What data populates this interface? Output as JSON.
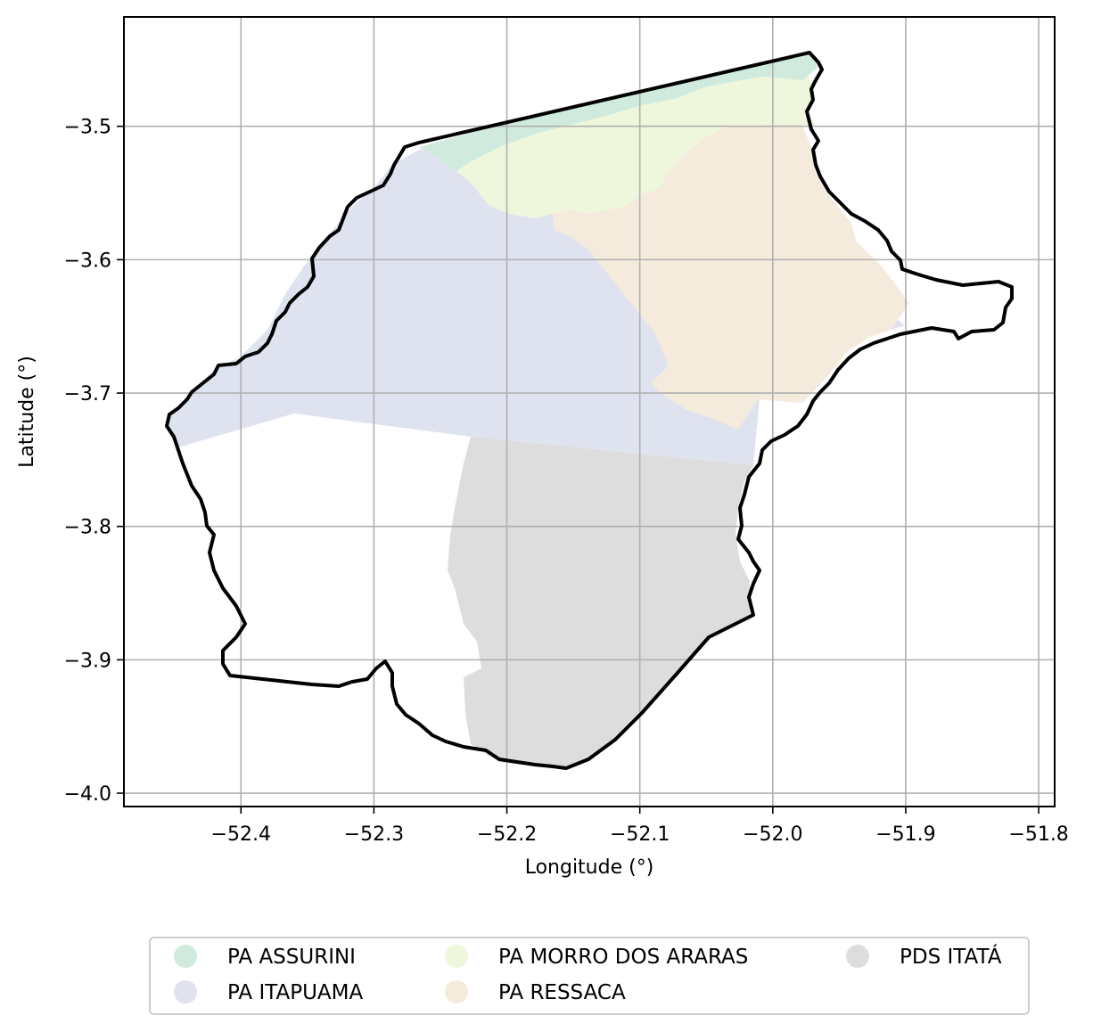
{
  "map": {
    "xlabel": "Longitude (°)",
    "ylabel": "Latitude (°)",
    "xlim": [
      -52.488,
      -51.788
    ],
    "ylim": [
      -4.01,
      -3.418
    ],
    "grid": true,
    "legend_placement": "bottom-center, below plot, 3 columns"
  },
  "axes": {
    "x_ticks": [
      {
        "value": -52.4,
        "label": "−52.4"
      },
      {
        "value": -52.3,
        "label": "−52.3"
      },
      {
        "value": -52.2,
        "label": "−52.2"
      },
      {
        "value": -52.1,
        "label": "−52.1"
      },
      {
        "value": -52.0,
        "label": "−52.0"
      },
      {
        "value": -51.9,
        "label": "−51.9"
      },
      {
        "value": -51.8,
        "label": "−51.8"
      }
    ],
    "y_ticks": [
      {
        "value": -3.5,
        "label": "−3.5"
      },
      {
        "value": -3.6,
        "label": "−3.6"
      },
      {
        "value": -3.7,
        "label": "−3.7"
      },
      {
        "value": -3.8,
        "label": "−3.8"
      },
      {
        "value": -3.9,
        "label": "−3.9"
      },
      {
        "value": -4.0,
        "label": "−4.0"
      }
    ]
  },
  "regions": [
    {
      "name": "PA ASSURINI",
      "color": "#d0ebde"
    },
    {
      "name": "PA ITAPUAMA",
      "color": "#dfe3f0"
    },
    {
      "name": "PA MORRO DOS ARARAS",
      "color": "#eef6dc"
    },
    {
      "name": "PA RESSACA",
      "color": "#f5ebdd"
    },
    {
      "name": "PDS ITATÁ",
      "color": "#dddddd"
    }
  ],
  "boundary": {
    "color": "#000000"
  }
}
